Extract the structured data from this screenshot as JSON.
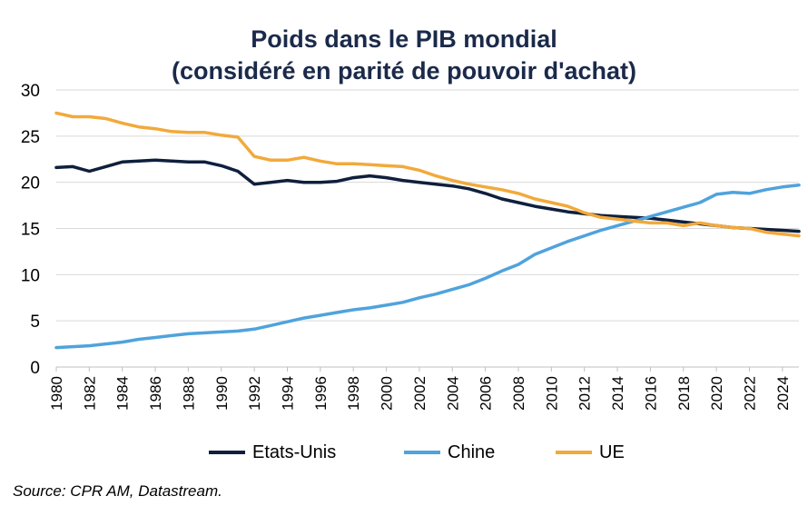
{
  "chart_data": {
    "type": "line",
    "title": "Poids dans le PIB mondial",
    "subtitle": "(considéré en parité de pouvoir d'achat)",
    "xlabel": "",
    "ylabel": "",
    "xlim": [
      1980,
      2025
    ],
    "ylim": [
      0,
      30
    ],
    "yticks": [
      0,
      5,
      10,
      15,
      20,
      25,
      30
    ],
    "xticks": [
      1980,
      1982,
      1984,
      1986,
      1988,
      1990,
      1992,
      1994,
      1996,
      1998,
      2000,
      2002,
      2004,
      2006,
      2008,
      2010,
      2012,
      2014,
      2016,
      2018,
      2020,
      2022,
      2024
    ],
    "grid": "horizontal",
    "legend_position": "bottom",
    "x": [
      1980,
      1981,
      1982,
      1983,
      1984,
      1985,
      1986,
      1987,
      1988,
      1989,
      1990,
      1991,
      1992,
      1993,
      1994,
      1995,
      1996,
      1997,
      1998,
      1999,
      2000,
      2001,
      2002,
      2003,
      2004,
      2005,
      2006,
      2007,
      2008,
      2009,
      2010,
      2011,
      2012,
      2013,
      2014,
      2015,
      2016,
      2017,
      2018,
      2019,
      2020,
      2021,
      2022,
      2023,
      2024,
      2025
    ],
    "series": [
      {
        "name": "Etats-Unis",
        "color": "#0f1f3d",
        "values": [
          21.6,
          21.7,
          21.2,
          21.7,
          22.2,
          22.3,
          22.4,
          22.3,
          22.2,
          22.2,
          21.8,
          21.2,
          19.8,
          20.0,
          20.2,
          20.0,
          20.0,
          20.1,
          20.5,
          20.7,
          20.5,
          20.2,
          20.0,
          19.8,
          19.6,
          19.3,
          18.8,
          18.2,
          17.8,
          17.4,
          17.1,
          16.8,
          16.6,
          16.4,
          16.3,
          16.2,
          16.1,
          15.9,
          15.7,
          15.5,
          15.3,
          15.1,
          15.0,
          14.9,
          14.8,
          14.7
        ]
      },
      {
        "name": "Chine",
        "color": "#4fa3dc",
        "values": [
          2.1,
          2.2,
          2.3,
          2.5,
          2.7,
          3.0,
          3.2,
          3.4,
          3.6,
          3.7,
          3.8,
          3.9,
          4.1,
          4.5,
          4.9,
          5.3,
          5.6,
          5.9,
          6.2,
          6.4,
          6.7,
          7.0,
          7.5,
          7.9,
          8.4,
          8.9,
          9.6,
          10.4,
          11.1,
          12.2,
          12.9,
          13.6,
          14.2,
          14.8,
          15.3,
          15.8,
          16.3,
          16.8,
          17.3,
          17.8,
          18.7,
          18.9,
          18.8,
          19.2,
          19.5,
          19.7
        ]
      },
      {
        "name": "UE",
        "color": "#f2a93b",
        "values": [
          27.5,
          27.1,
          27.1,
          26.9,
          26.4,
          26.0,
          25.8,
          25.5,
          25.4,
          25.4,
          25.1,
          24.9,
          22.8,
          22.4,
          22.4,
          22.7,
          22.3,
          22.0,
          22.0,
          21.9,
          21.8,
          21.7,
          21.3,
          20.7,
          20.2,
          19.8,
          19.5,
          19.2,
          18.8,
          18.2,
          17.8,
          17.4,
          16.7,
          16.2,
          16.0,
          15.8,
          15.6,
          15.6,
          15.3,
          15.6,
          15.3,
          15.1,
          15.0,
          14.6,
          14.4,
          14.2
        ]
      }
    ]
  },
  "source": "Source: CPR AM, Datastream."
}
